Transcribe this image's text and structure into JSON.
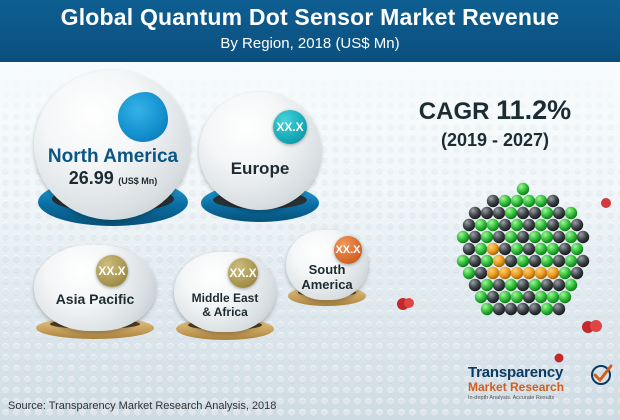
{
  "header": {
    "title": "Global Quantum Dot Sensor Market Revenue",
    "subtitle": "By Region, 2018 (US$ Mn)"
  },
  "regions": [
    {
      "name": "North America",
      "value": "26.99",
      "unit": "(US$ Mn)"
    },
    {
      "name": "Europe",
      "value": "XX.X"
    },
    {
      "name": "Asia Pacific",
      "value": "XX.X"
    },
    {
      "name": "Middle East & Africa",
      "line1": "Middle East",
      "line2": "& Africa",
      "value": "XX.X"
    },
    {
      "name": "South America",
      "line1": "South",
      "line2": "America",
      "value": "XX.X"
    }
  ],
  "cagr": {
    "label": "CAGR",
    "value": "11.2%",
    "period": "(2019 - 2027)"
  },
  "source": "Source: Transparency Market Research Analysis, 2018",
  "logo": {
    "name_line1": "Transparency",
    "name_line2": "Market Research",
    "tagline": "In-depth Analysis. Accurate Results"
  },
  "colors": {
    "header_bg": "#0b5685",
    "teal_badge": "#16a9b7",
    "olive_badge": "#a8964f",
    "orange_badge": "#d9692a",
    "blue_ring": "#0b6ea3",
    "gold_ring": "#c9a35e"
  },
  "icons": [
    "quantum-dot-cluster-icon",
    "particle-icon",
    "checkmark-icon"
  ]
}
